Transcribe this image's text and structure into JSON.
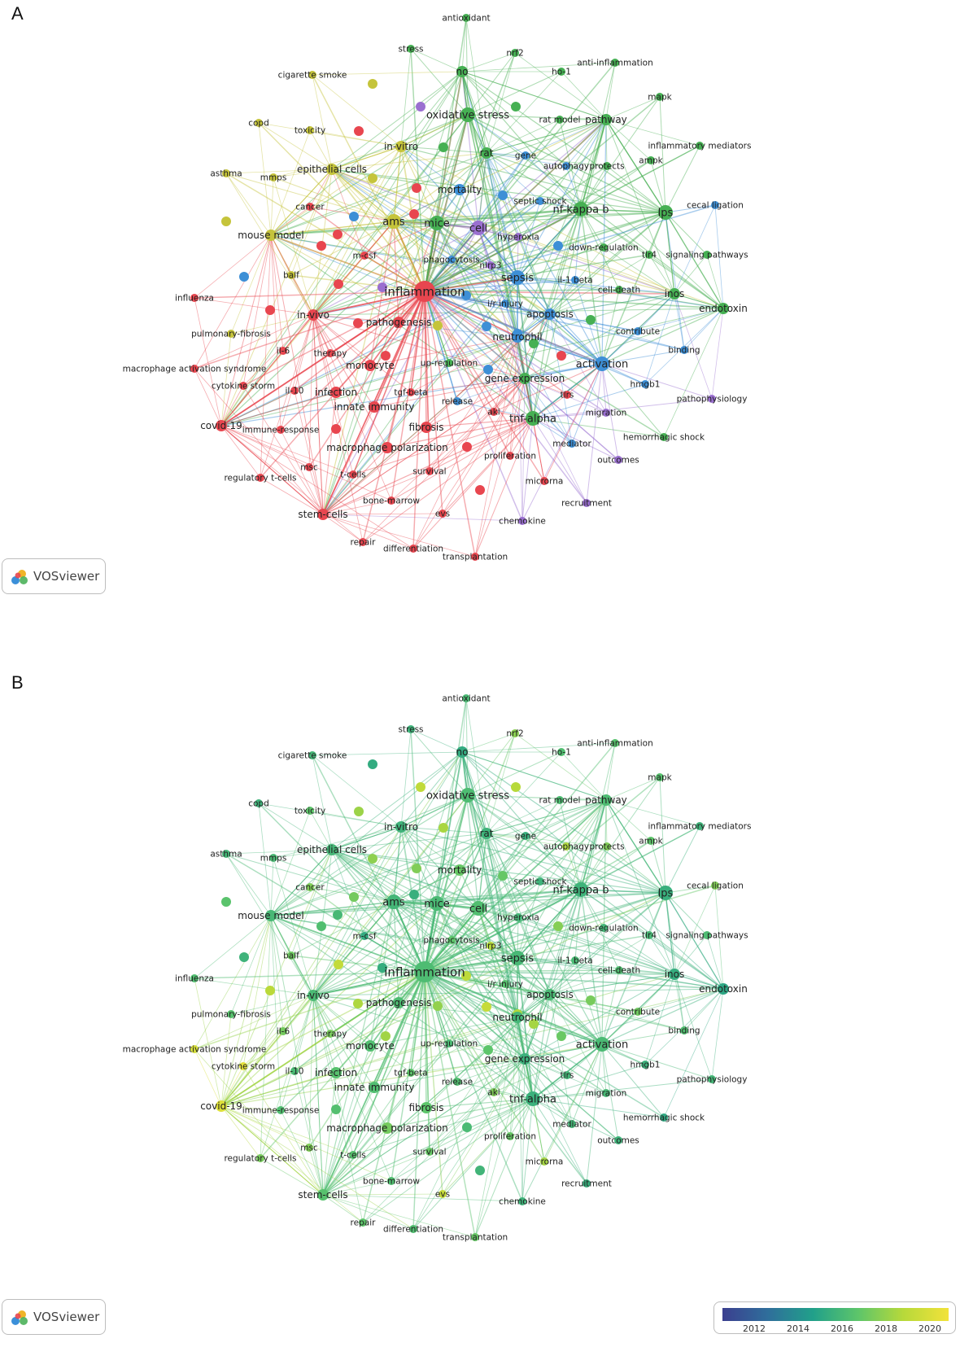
{
  "panels": [
    {
      "letter": "A",
      "mode": "cluster"
    },
    {
      "letter": "B",
      "mode": "overlay"
    }
  ],
  "badge_label": "VOSviewer",
  "cluster_colors": {
    "red": "#e8464f",
    "green": "#46b053",
    "blue": "#3d8fd6",
    "yellow": "#c5c43b",
    "purple": "#9a6fd0"
  },
  "overlay_scale": {
    "ticks": [
      "2012",
      "2014",
      "2016",
      "2018",
      "2020"
    ],
    "colors": [
      "#3b3f8f",
      "#2f6e9b",
      "#21a08a",
      "#5dc56a",
      "#b7d93a",
      "#f2e23a"
    ]
  },
  "nodes": [
    {
      "id": "inflammation",
      "label": "inflammation",
      "cluster": "red",
      "weight": 5,
      "year": 2016.5
    },
    {
      "id": "nf-kappa b",
      "label": "nf-kappa b",
      "cluster": "green",
      "weight": 3,
      "year": 2016.0
    },
    {
      "id": "lps",
      "label": "lps",
      "cluster": "green",
      "weight": 3,
      "year": 2015.8
    },
    {
      "id": "mice",
      "label": "mice",
      "cluster": "green",
      "weight": 3,
      "year": 2016.4
    },
    {
      "id": "cell",
      "label": "cell",
      "cluster": "purple",
      "weight": 3,
      "year": 2016.6
    },
    {
      "id": "ams",
      "label": "ams",
      "cluster": "yellow",
      "weight": 3,
      "year": 2016.2
    },
    {
      "id": "activation",
      "label": "activation",
      "cluster": "blue",
      "weight": 3,
      "year": 2016.4
    },
    {
      "id": "oxidative stress",
      "label": "oxidative stress",
      "cluster": "green",
      "weight": 3,
      "year": 2016.5
    },
    {
      "id": "sepsis",
      "label": "sepsis",
      "cluster": "blue",
      "weight": 3,
      "year": 2016.3
    },
    {
      "id": "tnf-alpha",
      "label": "tnf-alpha",
      "cluster": "green",
      "weight": 3,
      "year": 2015.9
    },
    {
      "id": "neutrophil",
      "label": "neutrophil",
      "cluster": "blue",
      "weight": 2,
      "year": 2016.2
    },
    {
      "id": "apoptosis",
      "label": "apoptosis",
      "cluster": "blue",
      "weight": 2,
      "year": 2016.4
    },
    {
      "id": "pathway",
      "label": "pathway",
      "cluster": "green",
      "weight": 2,
      "year": 2016.5
    },
    {
      "id": "no",
      "label": "no",
      "cluster": "green",
      "weight": 2,
      "year": 2015.6
    },
    {
      "id": "endotoxin",
      "label": "endotoxin",
      "cluster": "green",
      "weight": 2,
      "year": 2015.4
    },
    {
      "id": "inos",
      "label": "inos",
      "cluster": "green",
      "weight": 2,
      "year": 2015.7
    },
    {
      "id": "tlr4",
      "label": "tlr4",
      "cluster": "green",
      "weight": 1,
      "year": 2016.3
    },
    {
      "id": "rat",
      "label": "rat",
      "cluster": "green",
      "weight": 2,
      "year": 2016.0
    },
    {
      "id": "in-vitro",
      "label": "in-vitro",
      "cluster": "yellow",
      "weight": 2,
      "year": 2016.0
    },
    {
      "id": "epithelial cells",
      "label": "epithelial cells",
      "cluster": "yellow",
      "weight": 2,
      "year": 2016.2
    },
    {
      "id": "mouse model",
      "label": "mouse model",
      "cluster": "yellow",
      "weight": 2,
      "year": 2016.3
    },
    {
      "id": "in-vivo",
      "label": "in-vivo",
      "cluster": "red",
      "weight": 2,
      "year": 2016.4
    },
    {
      "id": "pathogenesis",
      "label": "pathogenesis",
      "cluster": "red",
      "weight": 2,
      "year": 2016.5
    },
    {
      "id": "monocyte",
      "label": "monocyte",
      "cluster": "red",
      "weight": 2,
      "year": 2016.6
    },
    {
      "id": "infection",
      "label": "infection",
      "cluster": "red",
      "weight": 2,
      "year": 2016.8
    },
    {
      "id": "innate immunity",
      "label": "innate immunity",
      "cluster": "red",
      "weight": 2,
      "year": 2016.6
    },
    {
      "id": "fibrosis",
      "label": "fibrosis",
      "cluster": "red",
      "weight": 2,
      "year": 2017.0
    },
    {
      "id": "macrophage polarization",
      "label": "macrophage polarization",
      "cluster": "red",
      "weight": 2,
      "year": 2017.5
    },
    {
      "id": "covid-19",
      "label": "covid-19",
      "cluster": "red",
      "weight": 2,
      "year": 2020.3
    },
    {
      "id": "stem-cells",
      "label": "stem-cells",
      "cluster": "red",
      "weight": 2,
      "year": 2016.8
    },
    {
      "id": "gene expression",
      "label": "gene expression",
      "cluster": "green",
      "weight": 2,
      "year": 2015.9
    },
    {
      "id": "mortality",
      "label": "mortality",
      "cluster": "blue",
      "weight": 2,
      "year": 2017.2
    },
    {
      "id": "i/r injury",
      "label": "i/r injury",
      "cluster": "blue",
      "weight": 1,
      "year": 2016.8
    },
    {
      "id": "nlrp3",
      "label": "nlrp3",
      "cluster": "purple",
      "weight": 1,
      "year": 2019.0
    },
    {
      "id": "phagocytosis",
      "label": "phagocytosis",
      "cluster": "blue",
      "weight": 1,
      "year": 2017.0
    },
    {
      "id": "hyperoxia",
      "label": "hyperoxia",
      "cluster": "purple",
      "weight": 1,
      "year": 2016.2
    },
    {
      "id": "septic shock",
      "label": "septic shock",
      "cluster": "blue",
      "weight": 1,
      "year": 2016.0
    },
    {
      "id": "autophagy",
      "label": "autophagy",
      "cluster": "blue",
      "weight": 1,
      "year": 2018.8
    },
    {
      "id": "protects",
      "label": "protects",
      "cluster": "green",
      "weight": 1,
      "year": 2017.8
    },
    {
      "id": "gene",
      "label": "gene",
      "cluster": "blue",
      "weight": 1,
      "year": 2015.8
    },
    {
      "id": "rat model",
      "label": "rat model",
      "cluster": "green",
      "weight": 1,
      "year": 2016.5
    },
    {
      "id": "antioxidant",
      "label": "antioxidant",
      "cluster": "green",
      "weight": 1,
      "year": 2016.4
    },
    {
      "id": "stress",
      "label": "stress",
      "cluster": "green",
      "weight": 1,
      "year": 2016.0
    },
    {
      "id": "nrf2",
      "label": "nrf2",
      "cluster": "green",
      "weight": 1,
      "year": 2018.0
    },
    {
      "id": "ho-1",
      "label": "ho-1",
      "cluster": "green",
      "weight": 1,
      "year": 2016.6
    },
    {
      "id": "anti-inflammation",
      "label": "anti-inflammation",
      "cluster": "green",
      "weight": 1,
      "year": 2016.8
    },
    {
      "id": "mapk",
      "label": "mapk",
      "cluster": "green",
      "weight": 1,
      "year": 2016.8
    },
    {
      "id": "inflammatory mediators",
      "label": "inflammatory mediators",
      "cluster": "green",
      "weight": 1,
      "year": 2016.0
    },
    {
      "id": "ampk",
      "label": "ampk",
      "cluster": "green",
      "weight": 1,
      "year": 2017.0
    },
    {
      "id": "cecal ligation",
      "label": "cecal ligation",
      "cluster": "blue",
      "weight": 1,
      "year": 2017.8
    },
    {
      "id": "signaling pathways",
      "label": "signaling pathways",
      "cluster": "green",
      "weight": 1,
      "year": 2016.5
    },
    {
      "id": "down-regulation",
      "label": "down-regulation",
      "cluster": "green",
      "weight": 1,
      "year": 2016.2
    },
    {
      "id": "il-1 beta",
      "label": "il-1 beta",
      "cluster": "blue",
      "weight": 1,
      "year": 2016.4
    },
    {
      "id": "cell-death",
      "label": "cell-death",
      "cluster": "green",
      "weight": 1,
      "year": 2016.6
    },
    {
      "id": "contribute",
      "label": "contribute",
      "cluster": "blue",
      "weight": 1,
      "year": 2017.4
    },
    {
      "id": "binding",
      "label": "binding",
      "cluster": "blue",
      "weight": 1,
      "year": 2016.6
    },
    {
      "id": "hmgb1",
      "label": "hmgb1",
      "cluster": "blue",
      "weight": 1,
      "year": 2015.9
    },
    {
      "id": "pathophysiology",
      "label": "pathophysiology",
      "cluster": "purple",
      "weight": 1,
      "year": 2016.2
    },
    {
      "id": "hemorrhagic shock",
      "label": "hemorrhagic shock",
      "cluster": "green",
      "weight": 1,
      "year": 2015.5
    },
    {
      "id": "migration",
      "label": "migration",
      "cluster": "purple",
      "weight": 1,
      "year": 2016.3
    },
    {
      "id": "mediator",
      "label": "mediator",
      "cluster": "blue",
      "weight": 1,
      "year": 2016.2
    },
    {
      "id": "outcomes",
      "label": "outcomes",
      "cluster": "purple",
      "weight": 1,
      "year": 2016.0
    },
    {
      "id": "recruitment",
      "label": "recruitment",
      "cluster": "purple",
      "weight": 1,
      "year": 2015.8
    },
    {
      "id": "chemokine",
      "label": "chemokine",
      "cluster": "purple",
      "weight": 1,
      "year": 2016.0
    },
    {
      "id": "microrna",
      "label": "microrna",
      "cluster": "red",
      "weight": 1,
      "year": 2018.6
    },
    {
      "id": "proliferation",
      "label": "proliferation",
      "cluster": "red",
      "weight": 1,
      "year": 2017.2
    },
    {
      "id": "aki",
      "label": "aki",
      "cluster": "red",
      "weight": 1,
      "year": 2017.8
    },
    {
      "id": "tlrs",
      "label": "tlrs",
      "cluster": "red",
      "weight": 1,
      "year": 2016.2
    },
    {
      "id": "release",
      "label": "release",
      "cluster": "blue",
      "weight": 1,
      "year": 2016.6
    },
    {
      "id": "up-regulation",
      "label": "up-regulation",
      "cluster": "green",
      "weight": 1,
      "year": 2016.4
    },
    {
      "id": "tgf-beta",
      "label": "tgf-beta",
      "cluster": "red",
      "weight": 1,
      "year": 2017.0
    },
    {
      "id": "survival",
      "label": "survival",
      "cluster": "red",
      "weight": 1,
      "year": 2017.2
    },
    {
      "id": "t-cells",
      "label": "t-cells",
      "cluster": "red",
      "weight": 1,
      "year": 2016.8
    },
    {
      "id": "bone-marrow",
      "label": "bone-marrow",
      "cluster": "red",
      "weight": 1,
      "year": 2016.6
    },
    {
      "id": "evs",
      "label": "evs",
      "cluster": "red",
      "weight": 1,
      "year": 2019.5
    },
    {
      "id": "repair",
      "label": "repair",
      "cluster": "red",
      "weight": 1,
      "year": 2017.0
    },
    {
      "id": "differentiation",
      "label": "differentiation",
      "cluster": "red",
      "weight": 1,
      "year": 2016.6
    },
    {
      "id": "transplantation",
      "label": "transplantation",
      "cluster": "red",
      "weight": 1,
      "year": 2017.2
    },
    {
      "id": "msc",
      "label": "msc",
      "cluster": "red",
      "weight": 1,
      "year": 2017.8
    },
    {
      "id": "regulatory t-cells",
      "label": "regulatory t-cells",
      "cluster": "red",
      "weight": 1,
      "year": 2017.6
    },
    {
      "id": "immune-response",
      "label": "immune-response",
      "cluster": "red",
      "weight": 1,
      "year": 2016.6
    },
    {
      "id": "il-10",
      "label": "il-10",
      "cluster": "red",
      "weight": 1,
      "year": 2016.4
    },
    {
      "id": "cytokine storm",
      "label": "cytokine storm",
      "cluster": "red",
      "weight": 1,
      "year": 2020.5
    },
    {
      "id": "macrophage activation syndrome",
      "label": "macrophage activation syndrome",
      "cluster": "red",
      "weight": 1,
      "year": 2020.0
    },
    {
      "id": "il-6",
      "label": "il-6",
      "cluster": "red",
      "weight": 1,
      "year": 2017.5
    },
    {
      "id": "therapy",
      "label": "therapy",
      "cluster": "red",
      "weight": 1,
      "year": 2017.6
    },
    {
      "id": "pulmonary-fibrosis",
      "label": "pulmonary-fibrosis",
      "cluster": "yellow",
      "weight": 1,
      "year": 2016.8
    },
    {
      "id": "influenza",
      "label": "influenza",
      "cluster": "red",
      "weight": 1,
      "year": 2016.6
    },
    {
      "id": "balf",
      "label": "balf",
      "cluster": "yellow",
      "weight": 1,
      "year": 2017.4
    },
    {
      "id": "m-csf",
      "label": "m-csf",
      "cluster": "red",
      "weight": 1,
      "year": 2015.6
    },
    {
      "id": "cancer",
      "label": "cancer",
      "cluster": "red",
      "weight": 1,
      "year": 2017.8
    },
    {
      "id": "mmps",
      "label": "mmps",
      "cluster": "yellow",
      "weight": 1,
      "year": 2016.4
    },
    {
      "id": "asthma",
      "label": "asthma",
      "cluster": "yellow",
      "weight": 1,
      "year": 2016.2
    },
    {
      "id": "copd",
      "label": "copd",
      "cluster": "yellow",
      "weight": 1,
      "year": 2016.0
    },
    {
      "id": "toxicity",
      "label": "toxicity",
      "cluster": "yellow",
      "weight": 1,
      "year": 2017.0
    },
    {
      "id": "cigarette smoke",
      "label": "cigarette smoke",
      "cluster": "yellow",
      "weight": 1,
      "year": 2016.2
    }
  ]
}
